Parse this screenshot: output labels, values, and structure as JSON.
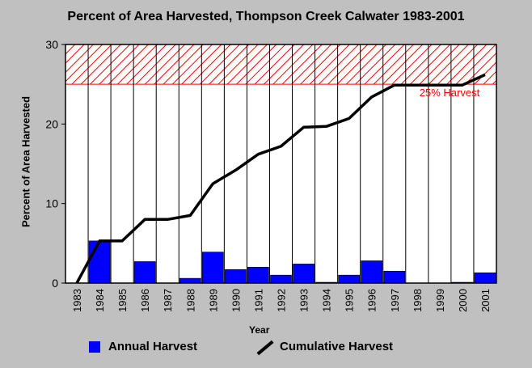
{
  "chart_data": {
    "type": "bar",
    "title": "Percent of Area Harvested, Thompson Creek Calwater 1983-2001",
    "xlabel": "Year",
    "ylabel": "Percent of Area Harvested",
    "categories": [
      "1983",
      "1984",
      "1985",
      "1986",
      "1987",
      "1988",
      "1989",
      "1990",
      "1991",
      "1992",
      "1993",
      "1994",
      "1995",
      "1996",
      "1997",
      "1998",
      "1999",
      "2000",
      "2001"
    ],
    "ylim": [
      0,
      30
    ],
    "yticks": [
      0,
      10,
      20,
      30
    ],
    "series": [
      {
        "name": "Annual Harvest",
        "type": "bar",
        "color": "#0000ff",
        "values": [
          0,
          5.3,
          0,
          2.7,
          0,
          0.6,
          3.9,
          1.7,
          2.0,
          1.0,
          2.4,
          0.1,
          1.0,
          2.8,
          1.5,
          0,
          0,
          0.1,
          1.3
        ]
      },
      {
        "name": "Cumulative Harvest",
        "type": "line",
        "color": "#000000",
        "values": [
          0,
          5.3,
          5.3,
          8.0,
          8.0,
          8.5,
          12.5,
          14.2,
          16.2,
          17.2,
          19.6,
          19.7,
          20.7,
          23.4,
          24.9,
          24.9,
          24.9,
          24.9,
          26.2
        ]
      }
    ],
    "threshold": {
      "label": "25% Harvest",
      "from": 25,
      "to": 30,
      "color": "#ff0000"
    },
    "legend_position": "bottom",
    "grid": "vertical"
  }
}
